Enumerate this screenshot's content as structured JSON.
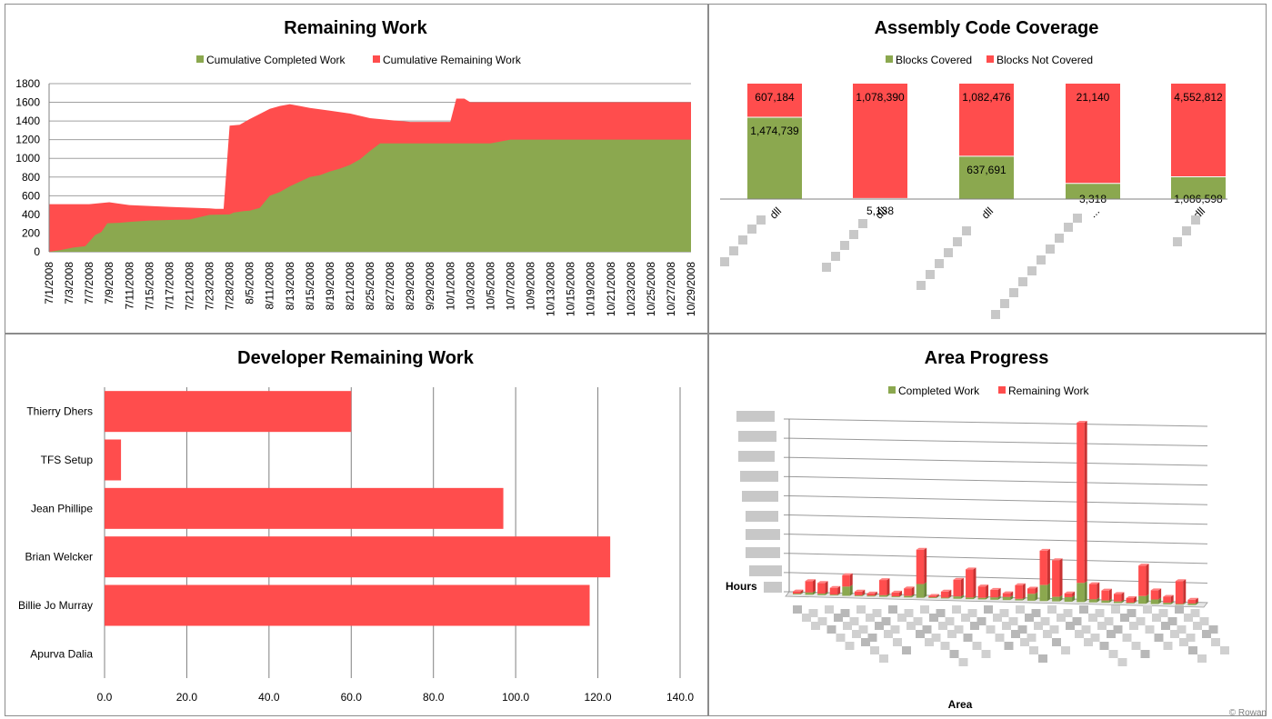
{
  "credit": "© Rowan",
  "chart_data": [
    {
      "id": "remaining_work",
      "type": "area",
      "title": "Remaining Work",
      "legend": [
        "Cumulative Completed Work",
        "Cumulative Remaining Work"
      ],
      "colors": {
        "completed": "#8BA84F",
        "remaining": "#FF4D4D"
      },
      "ylim": [
        0,
        1800
      ],
      "yticks": [
        0,
        200,
        400,
        600,
        800,
        1000,
        1200,
        1400,
        1600,
        1800
      ],
      "xlabels": [
        "7/1/2008",
        "7/3/2008",
        "7/7/2008",
        "7/9/2008",
        "7/11/2008",
        "7/15/2008",
        "7/17/2008",
        "7/21/2008",
        "7/23/2008",
        "7/28/2008",
        "8/5/2008",
        "8/11/2008",
        "8/13/2008",
        "8/15/2008",
        "8/19/2008",
        "8/21/2008",
        "8/25/2008",
        "8/27/2008",
        "8/29/2008",
        "9/29/2008",
        "10/1/2008",
        "10/3/2008",
        "10/5/2008",
        "10/7/2008",
        "10/9/2008",
        "10/13/2008",
        "10/15/2008",
        "10/19/2008",
        "10/21/2008",
        "10/23/2008",
        "10/25/2008",
        "10/27/2008",
        "10/29/2008"
      ],
      "series": [
        {
          "name": "Cumulative Completed Work",
          "x": [
            0,
            0.6,
            1.2,
            1.8,
            2.3,
            2.6,
            2.9,
            3.5,
            4,
            5,
            6,
            7,
            8,
            9,
            9.2,
            9.7,
            10,
            10.5,
            11,
            11.5,
            12,
            12.5,
            13,
            13.5,
            14,
            14.5,
            15,
            15.5,
            16,
            16.5,
            17,
            17.5,
            18,
            20,
            21,
            22,
            23,
            24,
            26,
            29,
            32
          ],
          "values": [
            0,
            20,
            45,
            60,
            180,
            210,
            305,
            310,
            320,
            335,
            340,
            345,
            395,
            400,
            420,
            435,
            440,
            470,
            600,
            640,
            700,
            750,
            800,
            820,
            860,
            890,
            930,
            990,
            1080,
            1160,
            1160,
            1160,
            1160,
            1160,
            1160,
            1160,
            1200,
            1200,
            1200,
            1200,
            1200
          ]
        },
        {
          "name": "Cumulative Remaining Work",
          "x": [
            0,
            2,
            3,
            4,
            6,
            8,
            8.3,
            8.7,
            9,
            9.5,
            10,
            11,
            11.5,
            12,
            12.5,
            13,
            14,
            15,
            16,
            17,
            18,
            20,
            20.3,
            20.7,
            21,
            22,
            26,
            29,
            32
          ],
          "values": [
            510,
            510,
            530,
            500,
            480,
            465,
            460,
            460,
            1350,
            1360,
            1420,
            1530,
            1560,
            1580,
            1560,
            1540,
            1510,
            1480,
            1430,
            1410,
            1390,
            1390,
            1640,
            1640,
            1600,
            1600,
            1600,
            1600,
            1600
          ]
        }
      ]
    },
    {
      "id": "assembly_code_coverage",
      "type": "bar",
      "stacked": "percent",
      "title": "Assembly Code Coverage",
      "legend": [
        "Blocks Covered",
        "Blocks Not Covered"
      ],
      "colors": {
        "covered": "#8BA84F",
        "not_covered": "#FF4D4D"
      },
      "categories": [
        "dll",
        "dll",
        "dll",
        "...",
        "dll"
      ],
      "series": [
        {
          "name": "Blocks Covered",
          "values": [
            1474739,
            5138,
            637691,
            3318,
            1086598
          ],
          "labels": [
            "1,474,739",
            "5,138",
            "637,691",
            "3,318",
            "1,086,598"
          ]
        },
        {
          "name": "Blocks Not Covered",
          "values": [
            607184,
            1078390,
            1082476,
            21140,
            4552812
          ],
          "labels": [
            "607,184",
            "1,078,390",
            "1,082,476",
            "21,140",
            "4,552,812"
          ]
        }
      ]
    },
    {
      "id": "developer_remaining_work",
      "type": "bar",
      "orientation": "horizontal",
      "title": "Developer Remaining Work",
      "color": "#FF4D4D",
      "categories": [
        "Thierry Dhers",
        "TFS Setup",
        "Jean Phillipe",
        "Brian Welcker",
        "Billie Jo Murray",
        "Apurva Dalia"
      ],
      "values": [
        60,
        4,
        97,
        123,
        118,
        0
      ],
      "xlim": [
        0,
        140
      ],
      "xticks": [
        "0.0",
        "20.0",
        "40.0",
        "60.0",
        "80.0",
        "100.0",
        "120.0",
        "140.0"
      ]
    },
    {
      "id": "area_progress",
      "type": "bar",
      "stacked": true,
      "three_d": true,
      "title": "Area Progress",
      "legend": [
        "Completed Work",
        "Remaining Work"
      ],
      "colors": {
        "completed": "#8BA84F",
        "remaining": "#FF4D4D"
      },
      "ylabel": "Hours",
      "xlabel": "Area",
      "series": [
        {
          "name": "Completed Work",
          "values": [
            1,
            3,
            2,
            1,
            12,
            1,
            1,
            2,
            1,
            2,
            18,
            1,
            1,
            3,
            2,
            2,
            3,
            4,
            2,
            9,
            21,
            6,
            6,
            25,
            4,
            3,
            2,
            1,
            10,
            6,
            2,
            1,
            2
          ]
        },
        {
          "name": "Remaining Work",
          "values": [
            3,
            15,
            14,
            9,
            15,
            5,
            3,
            20,
            5,
            10,
            45,
            2,
            8,
            22,
            37,
            15,
            10,
            5,
            18,
            7,
            45,
            48,
            5,
            210,
            20,
            13,
            10,
            6,
            40,
            12,
            8,
            30,
            5
          ]
        }
      ]
    }
  ]
}
